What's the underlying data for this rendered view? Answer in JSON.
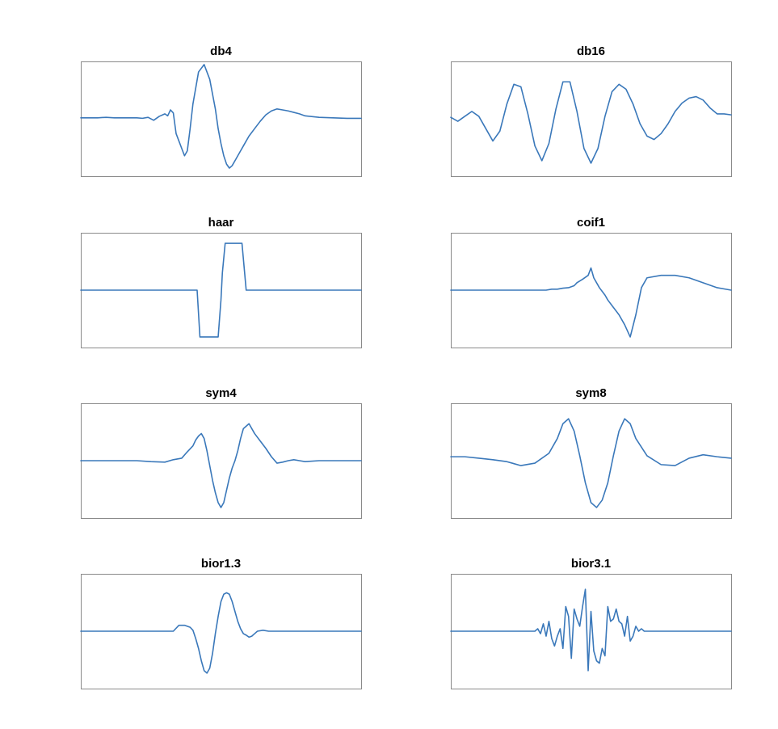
{
  "chart_data": [
    {
      "type": "line",
      "title": "db4",
      "ylim": [
        -1,
        1
      ],
      "x": [
        0,
        0.03,
        0.06,
        0.09,
        0.12,
        0.15,
        0.18,
        0.2,
        0.22,
        0.24,
        0.26,
        0.28,
        0.3,
        0.31,
        0.32,
        0.33,
        0.34,
        0.35,
        0.36,
        0.37,
        0.38,
        0.39,
        0.4,
        0.42,
        0.44,
        0.46,
        0.48,
        0.49,
        0.5,
        0.51,
        0.52,
        0.53,
        0.54,
        0.55,
        0.56,
        0.57,
        0.58,
        0.6,
        0.62,
        0.64,
        0.66,
        0.68,
        0.7,
        0.72,
        0.74,
        0.76,
        0.78,
        0.8,
        0.85,
        0.9,
        0.95,
        1.0
      ],
      "y": [
        0.02,
        0.02,
        0.02,
        0.03,
        0.02,
        0.02,
        0.02,
        0.02,
        0.01,
        0.03,
        -0.03,
        0.05,
        0.1,
        0.06,
        0.18,
        0.12,
        -0.3,
        -0.45,
        -0.6,
        -0.75,
        -0.65,
        -0.2,
        0.3,
        0.95,
        1.1,
        0.8,
        0.2,
        -0.2,
        -0.5,
        -0.75,
        -0.92,
        -1.0,
        -0.95,
        -0.85,
        -0.75,
        -0.65,
        -0.55,
        -0.35,
        -0.2,
        -0.05,
        0.08,
        0.16,
        0.2,
        0.18,
        0.16,
        0.13,
        0.1,
        0.06,
        0.03,
        0.02,
        0.01,
        0.01
      ]
    },
    {
      "type": "line",
      "title": "db16",
      "ylim": [
        -1,
        1
      ],
      "x": [
        0,
        0.025,
        0.05,
        0.075,
        0.1,
        0.125,
        0.15,
        0.175,
        0.2,
        0.225,
        0.25,
        0.275,
        0.3,
        0.325,
        0.35,
        0.375,
        0.4,
        0.425,
        0.45,
        0.475,
        0.5,
        0.525,
        0.55,
        0.575,
        0.6,
        0.625,
        0.65,
        0.675,
        0.7,
        0.725,
        0.75,
        0.775,
        0.8,
        0.825,
        0.85,
        0.875,
        0.9,
        0.925,
        0.95,
        0.975,
        1.0
      ],
      "y": [
        0.03,
        -0.05,
        0.05,
        0.15,
        0.05,
        -0.2,
        -0.45,
        -0.25,
        0.3,
        0.7,
        0.65,
        0.1,
        -0.55,
        -0.85,
        -0.5,
        0.2,
        0.75,
        0.75,
        0.15,
        -0.6,
        -0.9,
        -0.6,
        0.05,
        0.55,
        0.7,
        0.6,
        0.3,
        -0.1,
        -0.35,
        -0.42,
        -0.3,
        -0.1,
        0.15,
        0.32,
        0.42,
        0.45,
        0.38,
        0.22,
        0.1,
        0.1,
        0.08
      ]
    },
    {
      "type": "line",
      "title": "haar",
      "ylim": [
        -1,
        1
      ],
      "x": [
        0,
        0.415,
        0.425,
        0.49,
        0.5,
        0.505,
        0.515,
        0.575,
        0.59,
        1.0
      ],
      "y": [
        0,
        0,
        -0.95,
        -0.95,
        -0.2,
        0.35,
        0.95,
        0.95,
        0,
        0
      ]
    },
    {
      "type": "line",
      "title": "coif1",
      "ylim": [
        -1,
        1
      ],
      "x": [
        0,
        0.15,
        0.27,
        0.3,
        0.34,
        0.36,
        0.38,
        0.4,
        0.42,
        0.44,
        0.45,
        0.47,
        0.49,
        0.5,
        0.51,
        0.53,
        0.55,
        0.56,
        0.58,
        0.6,
        0.62,
        0.64,
        0.66,
        0.68,
        0.7,
        0.75,
        0.8,
        0.85,
        0.9,
        0.95,
        1.0
      ],
      "y": [
        0,
        0,
        0,
        0,
        0,
        0.02,
        0.02,
        0.04,
        0.05,
        0.09,
        0.15,
        0.22,
        0.3,
        0.45,
        0.25,
        0.05,
        -0.1,
        -0.2,
        -0.35,
        -0.5,
        -0.7,
        -0.95,
        -0.5,
        0.05,
        0.25,
        0.3,
        0.3,
        0.25,
        0.15,
        0.05,
        0
      ]
    },
    {
      "type": "line",
      "title": "sym4",
      "ylim": [
        -1,
        1
      ],
      "x": [
        0,
        0.05,
        0.1,
        0.15,
        0.2,
        0.25,
        0.3,
        0.33,
        0.36,
        0.38,
        0.4,
        0.41,
        0.42,
        0.43,
        0.44,
        0.45,
        0.46,
        0.47,
        0.48,
        0.49,
        0.5,
        0.51,
        0.52,
        0.53,
        0.54,
        0.55,
        0.56,
        0.57,
        0.58,
        0.6,
        0.62,
        0.64,
        0.66,
        0.68,
        0.7,
        0.72,
        0.74,
        0.76,
        0.78,
        0.8,
        0.85,
        0.9,
        0.95,
        1.0
      ],
      "y": [
        0,
        0,
        0,
        0,
        0,
        -0.02,
        -0.03,
        0.02,
        0.05,
        0.18,
        0.3,
        0.42,
        0.5,
        0.55,
        0.45,
        0.2,
        -0.1,
        -0.4,
        -0.65,
        -0.85,
        -0.95,
        -0.85,
        -0.6,
        -0.35,
        -0.15,
        0,
        0.2,
        0.45,
        0.65,
        0.75,
        0.55,
        0.4,
        0.25,
        0.08,
        -0.05,
        -0.03,
        0,
        0.02,
        0,
        -0.02,
        0,
        0,
        0,
        0
      ]
    },
    {
      "type": "line",
      "title": "sym8",
      "ylim": [
        -1,
        1
      ],
      "x": [
        0,
        0.05,
        0.1,
        0.15,
        0.2,
        0.25,
        0.3,
        0.35,
        0.38,
        0.4,
        0.42,
        0.44,
        0.46,
        0.48,
        0.5,
        0.52,
        0.54,
        0.56,
        0.58,
        0.6,
        0.62,
        0.64,
        0.66,
        0.7,
        0.75,
        0.8,
        0.85,
        0.9,
        0.95,
        1.0
      ],
      "y": [
        0.08,
        0.08,
        0.05,
        0.02,
        -0.02,
        -0.1,
        -0.05,
        0.15,
        0.45,
        0.75,
        0.85,
        0.6,
        0.1,
        -0.45,
        -0.85,
        -0.95,
        -0.8,
        -0.45,
        0.1,
        0.6,
        0.85,
        0.75,
        0.45,
        0.1,
        -0.08,
        -0.1,
        0.05,
        0.12,
        0.08,
        0.05
      ]
    },
    {
      "type": "line",
      "title": "bior1.3",
      "ylim": [
        -1,
        1
      ],
      "x": [
        0,
        0.1,
        0.2,
        0.3,
        0.33,
        0.35,
        0.37,
        0.39,
        0.4,
        0.41,
        0.42,
        0.43,
        0.44,
        0.45,
        0.46,
        0.47,
        0.48,
        0.49,
        0.5,
        0.51,
        0.52,
        0.53,
        0.54,
        0.55,
        0.56,
        0.57,
        0.58,
        0.59,
        0.6,
        0.61,
        0.62,
        0.63,
        0.65,
        0.67,
        0.7,
        0.8,
        0.9,
        1.0
      ],
      "y": [
        0,
        0,
        0,
        0,
        0,
        0.12,
        0.12,
        0.08,
        0.02,
        -0.15,
        -0.35,
        -0.6,
        -0.8,
        -0.85,
        -0.75,
        -0.45,
        -0.05,
        0.3,
        0.6,
        0.75,
        0.78,
        0.75,
        0.6,
        0.4,
        0.2,
        0.05,
        -0.05,
        -0.08,
        -0.12,
        -0.1,
        -0.05,
        0,
        0.02,
        0,
        0,
        0,
        0,
        0
      ]
    },
    {
      "type": "line",
      "title": "bior3.1",
      "ylim": [
        -1,
        1
      ],
      "x": [
        0,
        0.1,
        0.2,
        0.28,
        0.3,
        0.31,
        0.32,
        0.33,
        0.34,
        0.35,
        0.36,
        0.37,
        0.38,
        0.39,
        0.4,
        0.41,
        0.42,
        0.43,
        0.44,
        0.45,
        0.46,
        0.47,
        0.48,
        0.49,
        0.5,
        0.51,
        0.52,
        0.53,
        0.54,
        0.55,
        0.56,
        0.57,
        0.58,
        0.59,
        0.6,
        0.61,
        0.62,
        0.63,
        0.64,
        0.65,
        0.66,
        0.67,
        0.68,
        0.69,
        0.7,
        0.71,
        0.72,
        0.75,
        0.8,
        0.9,
        1.0
      ],
      "y": [
        0,
        0,
        0,
        0,
        0,
        0.05,
        -0.05,
        0.15,
        -0.1,
        0.2,
        -0.15,
        -0.3,
        -0.1,
        0.05,
        -0.35,
        0.5,
        0.3,
        -0.55,
        0.45,
        0.25,
        0.1,
        0.5,
        0.85,
        -0.8,
        0.4,
        -0.4,
        -0.6,
        -0.65,
        -0.35,
        -0.5,
        0.5,
        0.2,
        0.25,
        0.45,
        0.2,
        0.15,
        -0.1,
        0.3,
        -0.2,
        -0.1,
        0.1,
        0,
        0.05,
        0,
        0,
        0,
        0,
        0,
        0,
        0,
        0
      ]
    }
  ],
  "colors": {
    "line": "#3A78BA",
    "frame": "#8A8A8A",
    "title": "#000000"
  }
}
